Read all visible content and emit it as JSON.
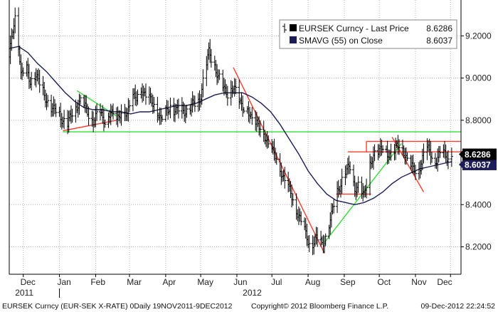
{
  "chart_data": {
    "type": "line",
    "title": "",
    "xlabel": "",
    "ylabel": "",
    "ylim": [
      8.07,
      9.37
    ],
    "grid": true,
    "legend_position": "top-right",
    "y_ticks": [
      {
        "value": 9.2,
        "label": "9.2000"
      },
      {
        "value": 9.0,
        "label": "9.0000"
      },
      {
        "value": 8.8,
        "label": "8.8000"
      },
      {
        "value": 8.6,
        "label": "8.6000"
      },
      {
        "value": 8.4,
        "label": "8.4000"
      },
      {
        "value": 8.2,
        "label": "8.2000"
      }
    ],
    "x_months": [
      {
        "label": "Dec",
        "day": 16
      },
      {
        "label": "Jan",
        "day": 47
      },
      {
        "label": "Feb",
        "day": 76
      },
      {
        "label": "Mar",
        "day": 107
      },
      {
        "label": "Apr",
        "day": 137
      },
      {
        "label": "May",
        "day": 168
      },
      {
        "label": "Jun",
        "day": 198
      },
      {
        "label": "Jul",
        "day": 229
      },
      {
        "label": "Aug",
        "day": 260
      },
      {
        "label": "Sep",
        "day": 290
      },
      {
        "label": "Oct",
        "day": 321
      },
      {
        "label": "Nov",
        "day": 351
      },
      {
        "label": "Dec",
        "day": 373
      }
    ],
    "month_boundaries": [
      12,
      43,
      74,
      103,
      134,
      164,
      195,
      225,
      256,
      287,
      317,
      348,
      378
    ],
    "x_years": [
      {
        "label": "2011",
        "day": 5
      },
      {
        "label": "2012",
        "day": 200
      }
    ],
    "year_boundary_day": 43,
    "x_range": [
      0,
      387
    ],
    "series": [
      {
        "name": "EURSEK Curncy - Last Price",
        "type": "ohlc",
        "color": "#000000",
        "last": "8.6286",
        "anchors": [
          [
            0,
            9.1
          ],
          [
            3,
            9.22
          ],
          [
            5,
            9.28
          ],
          [
            7,
            9.24
          ],
          [
            10,
            9.02
          ],
          [
            14,
            9.05
          ],
          [
            18,
            8.98
          ],
          [
            22,
            9.02
          ],
          [
            27,
            8.96
          ],
          [
            32,
            8.9
          ],
          [
            37,
            8.84
          ],
          [
            42,
            8.85
          ],
          [
            46,
            8.8
          ],
          [
            50,
            8.77
          ],
          [
            55,
            8.86
          ],
          [
            61,
            8.88
          ],
          [
            66,
            8.86
          ],
          [
            72,
            8.79
          ],
          [
            78,
            8.84
          ],
          [
            83,
            8.79
          ],
          [
            87,
            8.83
          ],
          [
            92,
            8.81
          ],
          [
            97,
            8.84
          ],
          [
            101,
            8.83
          ],
          [
            105,
            8.92
          ],
          [
            109,
            8.9
          ],
          [
            113,
            8.95
          ],
          [
            117,
            8.92
          ],
          [
            122,
            8.88
          ],
          [
            127,
            8.85
          ],
          [
            130,
            8.8
          ],
          [
            134,
            8.83
          ],
          [
            138,
            8.87
          ],
          [
            143,
            8.84
          ],
          [
            148,
            8.85
          ],
          [
            153,
            8.85
          ],
          [
            158,
            8.87
          ],
          [
            163,
            8.9
          ],
          [
            167,
            9.01
          ],
          [
            171,
            9.12
          ],
          [
            175,
            9.08
          ],
          [
            179,
            9.0
          ],
          [
            184,
            8.95
          ],
          [
            188,
            8.93
          ],
          [
            192,
            8.95
          ],
          [
            196,
            8.91
          ],
          [
            200,
            8.87
          ],
          [
            204,
            8.84
          ],
          [
            208,
            8.8
          ],
          [
            212,
            8.79
          ],
          [
            216,
            8.75
          ],
          [
            220,
            8.71
          ],
          [
            225,
            8.66
          ],
          [
            230,
            8.6
          ],
          [
            235,
            8.53
          ],
          [
            240,
            8.46
          ],
          [
            245,
            8.4
          ],
          [
            249,
            8.33
          ],
          [
            253,
            8.27
          ],
          [
            258,
            8.21
          ],
          [
            263,
            8.23
          ],
          [
            268,
            8.22
          ],
          [
            272,
            8.26
          ],
          [
            276,
            8.34
          ],
          [
            280,
            8.46
          ],
          [
            284,
            8.5
          ],
          [
            288,
            8.55
          ],
          [
            292,
            8.59
          ],
          [
            296,
            8.47
          ],
          [
            300,
            8.48
          ],
          [
            304,
            8.45
          ],
          [
            308,
            8.57
          ],
          [
            312,
            8.62
          ],
          [
            316,
            8.66
          ],
          [
            320,
            8.68
          ],
          [
            324,
            8.63
          ],
          [
            328,
            8.64
          ],
          [
            332,
            8.68
          ],
          [
            336,
            8.67
          ],
          [
            340,
            8.63
          ],
          [
            344,
            8.58
          ],
          [
            348,
            8.55
          ],
          [
            352,
            8.59
          ],
          [
            356,
            8.66
          ],
          [
            360,
            8.65
          ],
          [
            364,
            8.61
          ],
          [
            368,
            8.63
          ],
          [
            372,
            8.64
          ],
          [
            376,
            8.63
          ],
          [
            379,
            8.6286
          ]
        ]
      },
      {
        "name": "SMAVG (55) on Close",
        "type": "line",
        "color": "#1c1c5a",
        "last": "8.6037",
        "points": [
          [
            0,
            9.14
          ],
          [
            8,
            9.15
          ],
          [
            16,
            9.12
          ],
          [
            24,
            9.07
          ],
          [
            32,
            9.03
          ],
          [
            40,
            8.98
          ],
          [
            48,
            8.93
          ],
          [
            56,
            8.89
          ],
          [
            64,
            8.86
          ],
          [
            72,
            8.85
          ],
          [
            80,
            8.85
          ],
          [
            88,
            8.84
          ],
          [
            96,
            8.84
          ],
          [
            104,
            8.83
          ],
          [
            112,
            8.84
          ],
          [
            120,
            8.84
          ],
          [
            128,
            8.85
          ],
          [
            136,
            8.86
          ],
          [
            144,
            8.87
          ],
          [
            152,
            8.87
          ],
          [
            160,
            8.88
          ],
          [
            168,
            8.9
          ],
          [
            176,
            8.92
          ],
          [
            184,
            8.93
          ],
          [
            192,
            8.93
          ],
          [
            200,
            8.93
          ],
          [
            208,
            8.91
          ],
          [
            216,
            8.88
          ],
          [
            224,
            8.84
          ],
          [
            232,
            8.78
          ],
          [
            240,
            8.71
          ],
          [
            248,
            8.64
          ],
          [
            256,
            8.56
          ],
          [
            264,
            8.5
          ],
          [
            272,
            8.45
          ],
          [
            280,
            8.42
          ],
          [
            288,
            8.41
          ],
          [
            296,
            8.4
          ],
          [
            304,
            8.41
          ],
          [
            312,
            8.43
          ],
          [
            320,
            8.46
          ],
          [
            328,
            8.5
          ],
          [
            336,
            8.53
          ],
          [
            344,
            8.55
          ],
          [
            352,
            8.57
          ],
          [
            360,
            8.58
          ],
          [
            368,
            8.59
          ],
          [
            376,
            8.6
          ],
          [
            379,
            8.6037
          ]
        ]
      }
    ],
    "trendlines": [
      {
        "color": "#ff3b2f",
        "from": [
          46,
          8.75
        ],
        "to": [
          92,
          8.8
        ]
      },
      {
        "color": "#33dd33",
        "from": [
          58,
          8.94
        ],
        "to": [
          92,
          8.82
        ]
      },
      {
        "color": "#ff3b2f",
        "from": [
          192,
          9.05
        ],
        "to": [
          270,
          8.17
        ]
      },
      {
        "color": "#33dd33",
        "from": [
          270,
          8.22
        ],
        "to": [
          336,
          8.69
        ]
      },
      {
        "color": "#ff3b2f",
        "from": [
          328,
          8.72
        ],
        "to": [
          355,
          8.46
        ]
      },
      {
        "color": "#33dd33",
        "from": [
          46,
          8.745
        ],
        "to": [
          387,
          8.745
        ]
      },
      {
        "color": "#ff3b2f",
        "from": [
          290,
          8.65
        ],
        "to": [
          387,
          8.65
        ]
      },
      {
        "color": "#ff3b2f",
        "from": [
          306,
          8.7
        ],
        "to": [
          387,
          8.7
        ]
      },
      {
        "color": "#ff3b2f",
        "from": [
          280,
          8.45
        ],
        "to": [
          310,
          8.45
        ]
      },
      {
        "color": "#ff3b2f",
        "from": [
          306,
          8.65
        ],
        "to": [
          306,
          8.7
        ]
      }
    ],
    "legend": [
      {
        "label": "EURSEK Curncy - Last Price",
        "value": "8.6286",
        "swatch": "#000000",
        "icon": "ohlc-bar-icon"
      },
      {
        "label": "SMAVG (55) on Close",
        "value": "8.6037",
        "swatch": "#1c1c5a",
        "icon": "square-swatch-icon"
      }
    ],
    "badges": [
      {
        "value": 8.6286,
        "label": "8.6286",
        "color": "#000000"
      },
      {
        "value": 8.6037,
        "label": "8.6037",
        "color": "#1c1c5a"
      }
    ]
  },
  "footer": {
    "description": "EURSEK Curncy (EUR-SEK X-RATE) 0Daily 19NOV2011-9DEC2012",
    "copyright": "Copyright© 2012 Bloomberg Finance L.P.",
    "timestamp": "09-Dec-2012 22:24:52"
  }
}
